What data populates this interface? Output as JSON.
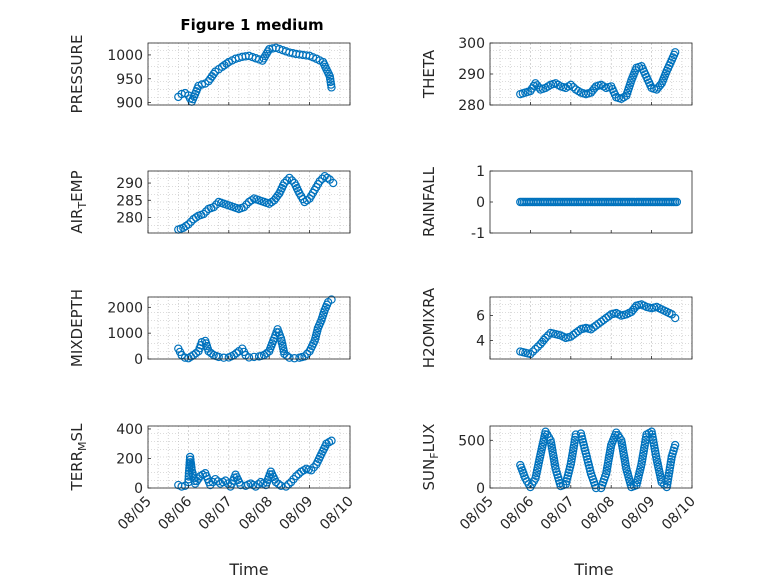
{
  "figure_title": "Figure 1 medium",
  "marker_color": "#0072bd",
  "x_tick_labels": [
    "08/05",
    "08/06",
    "08/07",
    "08/08",
    "08/09",
    "08/10"
  ],
  "x_label": "Time",
  "chart_data": [
    {
      "type": "scatter",
      "name": "pressure",
      "ylabel": "PRESSURE",
      "yticks": [
        "900",
        "950",
        "1000"
      ],
      "ylim": [
        895,
        1025
      ],
      "grid": true,
      "marker": "open-circle",
      "x": [
        "08/05 18:00",
        "08/05 20:00",
        "08/05 22:00",
        "08/06 00:00",
        "08/06 02:00",
        "08/06 04:00",
        "08/06 06:00",
        "08/06 08:00",
        "08/06 10:00",
        "08/06 12:00",
        "08/06 14:00",
        "08/06 16:00",
        "08/06 18:00",
        "08/06 20:00",
        "08/07 00:00",
        "08/07 04:00",
        "08/07 08:00",
        "08/07 12:00",
        "08/07 16:00",
        "08/07 20:00",
        "08/08 00:00",
        "08/08 04:00",
        "08/08 08:00",
        "08/08 12:00",
        "08/08 16:00",
        "08/08 20:00",
        "08/09 00:00",
        "08/09 04:00",
        "08/09 08:00",
        "08/09 10:00",
        "08/09 12:00",
        "08/09 13:00"
      ],
      "y": [
        912,
        918,
        920,
        915,
        902,
        918,
        935,
        938,
        940,
        945,
        955,
        965,
        970,
        975,
        985,
        992,
        996,
        998,
        993,
        988,
        1012,
        1015,
        1010,
        1005,
        1002,
        1000,
        998,
        992,
        985,
        970,
        955,
        932
      ]
    },
    {
      "type": "scatter",
      "name": "theta",
      "ylabel": "THETA",
      "yticks": [
        "280",
        "290",
        "300"
      ],
      "ylim": [
        280,
        300
      ],
      "grid": true,
      "marker": "open-circle",
      "x": [
        "08/05 18:00",
        "08/05 21:00",
        "08/06 00:00",
        "08/06 03:00",
        "08/06 06:00",
        "08/06 09:00",
        "08/06 12:00",
        "08/06 15:00",
        "08/06 18:00",
        "08/06 21:00",
        "08/07 00:00",
        "08/07 03:00",
        "08/07 06:00",
        "08/07 09:00",
        "08/07 12:00",
        "08/07 15:00",
        "08/07 18:00",
        "08/07 21:00",
        "08/08 00:00",
        "08/08 03:00",
        "08/08 06:00",
        "08/08 09:00",
        "08/08 12:00",
        "08/08 15:00",
        "08/08 18:00",
        "08/08 21:00",
        "08/09 00:00",
        "08/09 03:00",
        "08/09 06:00",
        "08/09 09:00",
        "08/09 12:00",
        "08/09 14:00"
      ],
      "y": [
        283.5,
        284,
        284.5,
        287,
        285,
        285.5,
        286.5,
        287,
        286,
        285.5,
        286.5,
        285,
        284,
        283.5,
        284,
        286,
        286.5,
        285.5,
        286,
        282.5,
        282,
        283,
        288,
        292,
        292.5,
        289,
        285.5,
        285,
        287,
        291,
        294.5,
        297
      ]
    },
    {
      "type": "scatter",
      "name": "air-temp",
      "ylabel": "AIR_TEMP",
      "yticks": [
        "280",
        "285",
        "290"
      ],
      "ylim": [
        275.5,
        293.5
      ],
      "grid": true,
      "marker": "open-circle",
      "x": [
        "08/05 18:00",
        "08/05 21:00",
        "08/06 00:00",
        "08/06 03:00",
        "08/06 06:00",
        "08/06 09:00",
        "08/06 12:00",
        "08/06 15:00",
        "08/06 18:00",
        "08/06 21:00",
        "08/07 00:00",
        "08/07 03:00",
        "08/07 06:00",
        "08/07 09:00",
        "08/07 12:00",
        "08/07 15:00",
        "08/07 18:00",
        "08/07 21:00",
        "08/08 00:00",
        "08/08 03:00",
        "08/08 06:00",
        "08/08 09:00",
        "08/08 12:00",
        "08/08 15:00",
        "08/08 18:00",
        "08/08 21:00",
        "08/09 00:00",
        "08/09 03:00",
        "08/09 06:00",
        "08/09 09:00",
        "08/09 12:00",
        "08/09 14:00"
      ],
      "y": [
        276.5,
        277,
        278,
        279.5,
        280.5,
        281,
        282.5,
        283,
        284.5,
        284,
        283.5,
        283,
        282.5,
        283,
        284.5,
        285.5,
        285,
        284.5,
        284,
        285,
        287,
        290,
        291.5,
        290,
        287,
        284.5,
        285.5,
        288,
        290.5,
        292,
        291,
        290
      ]
    },
    {
      "type": "scatter",
      "name": "rainfall",
      "ylabel": "RAINFALL",
      "yticks": [
        "-1",
        "0",
        "1"
      ],
      "ylim": [
        -1,
        1
      ],
      "grid": false,
      "marker": "open-circle",
      "x": [
        "08/05 18:00",
        "08/09 15:00"
      ],
      "y": [
        0,
        0
      ]
    },
    {
      "type": "scatter",
      "name": "mixdepth",
      "ylabel": "MIXDEPTH",
      "yticks": [
        "0",
        "1000",
        "2000"
      ],
      "ylim": [
        0,
        2400
      ],
      "grid": true,
      "marker": "open-circle",
      "x": [
        "08/05 18:00",
        "08/05 20:00",
        "08/05 22:00",
        "08/06 00:00",
        "08/06 03:00",
        "08/06 06:00",
        "08/06 08:00",
        "08/06 10:00",
        "08/06 12:00",
        "08/06 15:00",
        "08/06 18:00",
        "08/06 21:00",
        "08/07 00:00",
        "08/07 03:00",
        "08/07 06:00",
        "08/07 08:00",
        "08/07 10:00",
        "08/07 12:00",
        "08/07 15:00",
        "08/07 18:00",
        "08/07 21:00",
        "08/08 00:00",
        "08/08 03:00",
        "08/08 05:00",
        "08/08 07:00",
        "08/08 09:00",
        "08/08 12:00",
        "08/08 15:00",
        "08/08 18:00",
        "08/08 21:00",
        "08/09 00:00",
        "08/09 03:00",
        "08/09 05:00",
        "08/09 07:00",
        "08/09 09:00",
        "08/09 11:00",
        "08/09 13:00"
      ],
      "y": [
        400,
        150,
        50,
        30,
        150,
        300,
        650,
        700,
        300,
        150,
        80,
        50,
        60,
        150,
        300,
        400,
        150,
        60,
        80,
        100,
        150,
        300,
        800,
        1150,
        800,
        200,
        50,
        30,
        50,
        100,
        300,
        700,
        1200,
        1500,
        1900,
        2200,
        2300
      ]
    },
    {
      "type": "scatter",
      "name": "h2omixra",
      "ylabel": "H2OMIXRA",
      "yticks": [
        "4",
        "6"
      ],
      "ylim": [
        2.5,
        7.5
      ],
      "grid": true,
      "marker": "open-circle",
      "x": [
        "08/05 18:00",
        "08/05 21:00",
        "08/06 00:00",
        "08/06 03:00",
        "08/06 06:00",
        "08/06 09:00",
        "08/06 12:00",
        "08/06 15:00",
        "08/06 18:00",
        "08/06 21:00",
        "08/07 00:00",
        "08/07 03:00",
        "08/07 06:00",
        "08/07 09:00",
        "08/07 12:00",
        "08/07 15:00",
        "08/07 18:00",
        "08/07 21:00",
        "08/08 00:00",
        "08/08 03:00",
        "08/08 06:00",
        "08/08 09:00",
        "08/08 12:00",
        "08/08 15:00",
        "08/08 18:00",
        "08/08 21:00",
        "08/09 00:00",
        "08/09 03:00",
        "08/09 06:00",
        "08/09 09:00",
        "08/09 12:00",
        "08/09 14:00"
      ],
      "y": [
        3.1,
        3,
        2.9,
        3.3,
        3.7,
        4.2,
        4.6,
        4.5,
        4.4,
        4.2,
        4.3,
        4.6,
        4.9,
        5,
        4.9,
        5.2,
        5.5,
        5.8,
        6.1,
        6.2,
        6,
        6.1,
        6.3,
        6.8,
        6.9,
        6.7,
        6.6,
        6.7,
        6.5,
        6.3,
        6.1,
        5.8
      ]
    },
    {
      "type": "scatter",
      "name": "terr-msl",
      "ylabel": "TERR_MSL",
      "yticks": [
        "0",
        "200",
        "400"
      ],
      "ylim": [
        0,
        420
      ],
      "grid": true,
      "marker": "open-circle",
      "x": [
        "08/05 18:00",
        "08/05 20:00",
        "08/05 22:00",
        "08/06 00:00",
        "08/06 01:00",
        "08/06 02:00",
        "08/06 04:00",
        "08/06 07:00",
        "08/06 10:00",
        "08/06 13:00",
        "08/06 16:00",
        "08/06 19:00",
        "08/06 22:00",
        "08/07 01:00",
        "08/07 04:00",
        "08/07 07:00",
        "08/07 10:00",
        "08/07 13:00",
        "08/07 16:00",
        "08/07 19:00",
        "08/07 22:00",
        "08/08 01:00",
        "08/08 04:00",
        "08/08 07:00",
        "08/08 10:00",
        "08/08 13:00",
        "08/08 16:00",
        "08/08 19:00",
        "08/08 22:00",
        "08/09 01:00",
        "08/09 04:00",
        "08/09 07:00",
        "08/09 10:00",
        "08/09 13:00"
      ],
      "y": [
        20,
        10,
        15,
        40,
        210,
        120,
        30,
        80,
        100,
        20,
        60,
        30,
        50,
        10,
        90,
        20,
        15,
        30,
        10,
        40,
        20,
        110,
        40,
        15,
        10,
        40,
        80,
        110,
        130,
        120,
        160,
        230,
        300,
        320
      ]
    },
    {
      "type": "scatter",
      "name": "sun-flux",
      "ylabel": "SUN_FLUX",
      "yticks": [
        "0",
        "500"
      ],
      "ylim": [
        0,
        650
      ],
      "grid": true,
      "marker": "open-circle",
      "x": [
        "08/05 18:00",
        "08/05 21:00",
        "08/06 00:00",
        "08/06 03:00",
        "08/06 06:00",
        "08/06 09:00",
        "08/06 12:00",
        "08/06 15:00",
        "08/06 18:00",
        "08/06 21:00",
        "08/07 00:00",
        "08/07 03:00",
        "08/07 06:00",
        "08/07 09:00",
        "08/07 12:00",
        "08/07 15:00",
        "08/07 18:00",
        "08/07 21:00",
        "08/08 00:00",
        "08/08 03:00",
        "08/08 06:00",
        "08/08 09:00",
        "08/08 12:00",
        "08/08 15:00",
        "08/08 18:00",
        "08/08 21:00",
        "08/09 00:00",
        "08/09 03:00",
        "08/09 06:00",
        "08/09 09:00",
        "08/09 12:00",
        "08/09 14:00"
      ],
      "y": [
        240,
        100,
        10,
        100,
        350,
        590,
        500,
        200,
        20,
        40,
        250,
        560,
        570,
        360,
        150,
        0,
        0,
        150,
        450,
        580,
        500,
        200,
        10,
        30,
        250,
        560,
        590,
        300,
        60,
        10,
        330,
        450
      ]
    }
  ]
}
